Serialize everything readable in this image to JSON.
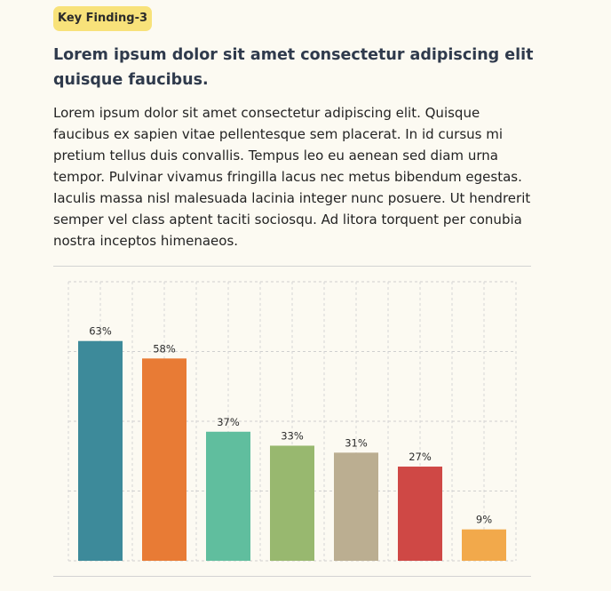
{
  "badge": "Key Finding-3",
  "headline": "Lorem ipsum dolor sit amet consectetur adipiscing elit quisque faucibus.",
  "body": "Lorem ipsum dolor sit amet consectetur adipiscing elit. Quisque faucibus ex sapien vitae pellentesque sem placerat. In id cursus mi pretium tellus duis convallis. Tempus leo eu aenean sed diam urna tempor. Pulvinar vivamus fringilla lacus nec metus bibendum egestas. Iaculis massa nisl malesuada lacinia integer nunc posuere. Ut hendrerit semper vel class aptent taciti sociosqu. Ad litora torquent per conubia nostra inceptos himenaeos.",
  "colors": {
    "badge": "#f8e27a",
    "bars": [
      "#3d8a9a",
      "#e87b35",
      "#60be9e",
      "#98b86f",
      "#bbae91",
      "#cf4845",
      "#f2a94b"
    ]
  },
  "chart_data": {
    "type": "bar",
    "categories": [
      "",
      "",
      "",
      "",
      "",
      "",
      ""
    ],
    "values": [
      63,
      58,
      37,
      33,
      31,
      27,
      9
    ],
    "data_labels": [
      "63%",
      "58%",
      "37%",
      "33%",
      "31%",
      "27%",
      "9%"
    ],
    "title": "",
    "xlabel": "",
    "ylabel": "",
    "ylim": [
      0,
      80
    ],
    "grid": true,
    "legend": "none"
  }
}
